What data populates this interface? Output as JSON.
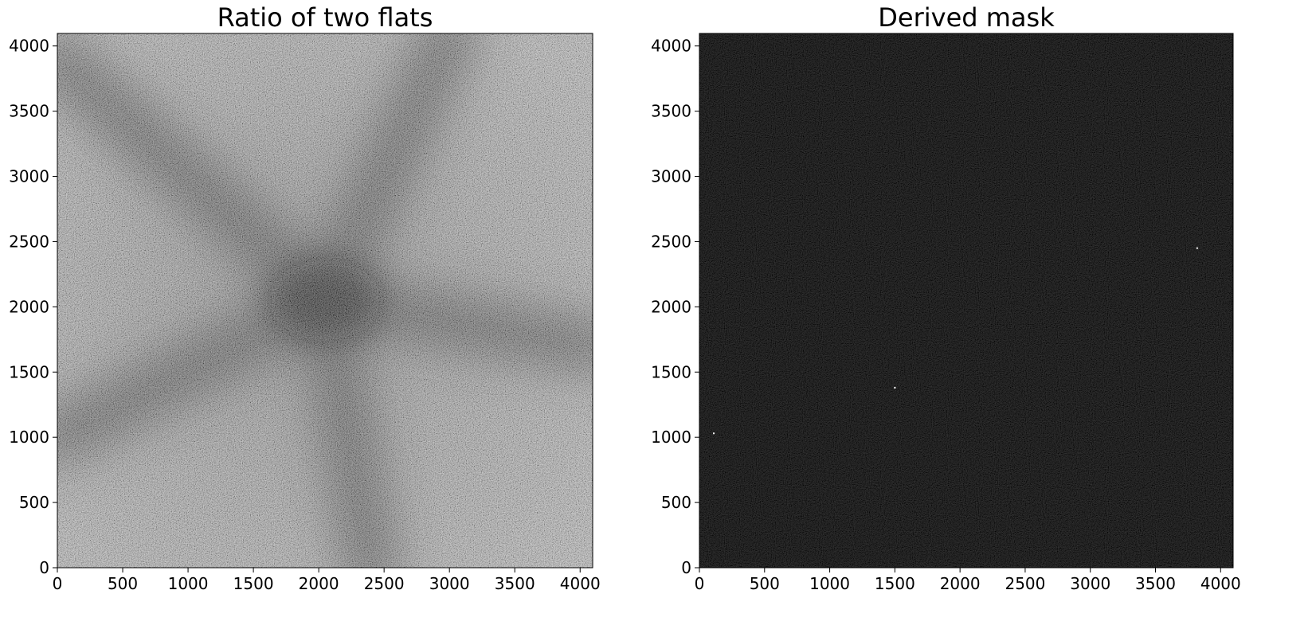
{
  "chart_data": [
    {
      "type": "heatmap",
      "title": "Ratio of two flats",
      "colormap": "gray",
      "xlim": [
        0,
        4096
      ],
      "ylim": [
        0,
        4096
      ],
      "xticks": [
        0,
        500,
        1000,
        1500,
        2000,
        2500,
        3000,
        3500,
        4000
      ],
      "yticks": [
        0,
        500,
        1000,
        1500,
        2000,
        2500,
        3000,
        3500,
        4000
      ],
      "xtick_labels": [
        "0",
        "500",
        "1000",
        "1500",
        "2000",
        "2500",
        "3000",
        "3500",
        "4000"
      ],
      "ytick_labels": [
        "0",
        "500",
        "1000",
        "1500",
        "2000",
        "2500",
        "3000",
        "3500",
        "4000"
      ],
      "features": {
        "dark_center": [
          2050,
          2050
        ],
        "dark_bands": [
          {
            "from": [
              2050,
              2050
            ],
            "to": [
              0,
              3900
            ]
          },
          {
            "from": [
              2050,
              2050
            ],
            "to": [
              3000,
              4096
            ]
          },
          {
            "from": [
              2050,
              2050
            ],
            "to": [
              4096,
              1700
            ]
          },
          {
            "from": [
              2050,
              2050
            ],
            "to": [
              2400,
              0
            ]
          },
          {
            "from": [
              2050,
              2050
            ],
            "to": [
              0,
              1000
            ]
          }
        ]
      }
    },
    {
      "type": "heatmap",
      "title": "Derived mask",
      "colormap": "gray",
      "xlim": [
        0,
        4096
      ],
      "ylim": [
        0,
        4096
      ],
      "xticks": [
        0,
        500,
        1000,
        1500,
        2000,
        2500,
        3000,
        3500,
        4000
      ],
      "yticks": [
        0,
        500,
        1000,
        1500,
        2000,
        2500,
        3000,
        3500,
        4000
      ],
      "xtick_labels": [
        "0",
        "500",
        "1000",
        "1500",
        "2000",
        "2500",
        "3000",
        "3500",
        "4000"
      ],
      "ytick_labels": [
        "0",
        "500",
        "1000",
        "1500",
        "2000",
        "2500",
        "3000",
        "3500",
        "4000"
      ],
      "masked_pixels": [
        {
          "x": 3820,
          "y": 2450
        },
        {
          "x": 110,
          "y": 1030
        },
        {
          "x": 1500,
          "y": 1380
        }
      ]
    }
  ]
}
